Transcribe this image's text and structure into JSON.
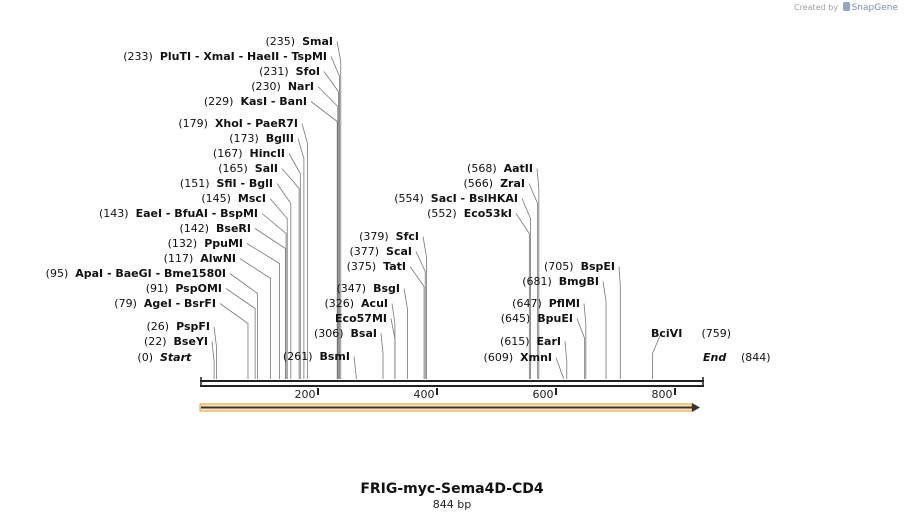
{
  "watermark": {
    "prefix": "Created by",
    "brand": "SnapGene"
  },
  "sequence": {
    "name": "FRIG-myc-Sema4D-CD4",
    "length_label": "844 bp",
    "length": 844
  },
  "ruler_ticks": [
    "200",
    "400",
    "600",
    "800"
  ],
  "colors": {
    "feature_fill": "#f5a623",
    "line": "#222222",
    "leader": "#777777"
  },
  "ends": {
    "start": {
      "name": "Start",
      "pos": 0
    },
    "end": {
      "name": "End",
      "pos": 844
    }
  },
  "sites": [
    {
      "label": "(22)  BseYI",
      "pos": 22
    },
    {
      "label": "(26)  PspFI",
      "pos": 26
    },
    {
      "label": "(79)  AgeI  - BsrFI",
      "pos": 79
    },
    {
      "label": "(91)  PspOMI",
      "pos": 91
    },
    {
      "label": "(95)  ApaI  - BaeGI  - Bme1580I",
      "pos": 95
    },
    {
      "label": "(117)  AlwNI",
      "pos": 117
    },
    {
      "label": "(132)  PpuMI",
      "pos": 132
    },
    {
      "label": "(142)  BseRI",
      "pos": 142
    },
    {
      "label": "(143)  EaeI  - BfuAI  - BspMI",
      "pos": 143
    },
    {
      "label": "(145)  MscI",
      "pos": 145
    },
    {
      "label": "(151)  SfiI  - BglI",
      "pos": 151
    },
    {
      "label": "(165)  SalI",
      "pos": 165
    },
    {
      "label": "(167)  HincII",
      "pos": 167
    },
    {
      "label": "(173)  BglII",
      "pos": 173
    },
    {
      "label": "(179)  XhoI  - PaeR7I",
      "pos": 179
    },
    {
      "label": "(229)  KasI  - BanI",
      "pos": 229
    },
    {
      "label": "(230)  NarI",
      "pos": 230
    },
    {
      "label": "(231)  SfoI",
      "pos": 231
    },
    {
      "label": "(233)  PluTI  - XmaI  - HaeII  - TspMI",
      "pos": 233
    },
    {
      "label": "(235)  SmaI",
      "pos": 235
    },
    {
      "label": "(261)  BsmI",
      "pos": 261
    },
    {
      "label": "(306)  BsaI",
      "pos": 306
    },
    {
      "label": "Eco57MI",
      "pos": 326
    },
    {
      "label": "(326)  AcuI",
      "pos": 326
    },
    {
      "label": "(347)  BsgI",
      "pos": 347
    },
    {
      "label": "(375)  TatI",
      "pos": 375
    },
    {
      "label": "(377)  ScaI",
      "pos": 377
    },
    {
      "label": "(379)  SfcI",
      "pos": 379
    },
    {
      "label": "(552)  Eco53kI",
      "pos": 552
    },
    {
      "label": "(554)  SacI  - BslHKAI",
      "pos": 554
    },
    {
      "label": "(566)  ZraI",
      "pos": 566
    },
    {
      "label": "(568)  AatII",
      "pos": 568
    },
    {
      "label": "(609)  XmnI",
      "pos": 609
    },
    {
      "label": "(615)  EarI",
      "pos": 615
    },
    {
      "label": "(645)  BpuEI",
      "pos": 645
    },
    {
      "label": "(647)  PflMI",
      "pos": 647
    },
    {
      "label": "(681)  BmgBI",
      "pos": 681
    },
    {
      "label": "(705)  BspEI",
      "pos": 705
    },
    {
      "label": "BciVI  (759)",
      "pos": 759
    }
  ]
}
